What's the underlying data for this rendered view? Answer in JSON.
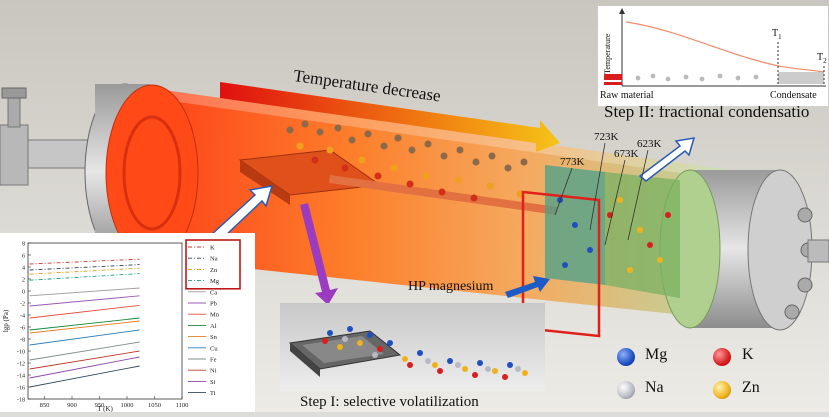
{
  "labels": {
    "temperature_decrease": "Temperature decrease",
    "step2": "Step II: fractional condensatio",
    "step1": "Step I: selective volatilization",
    "hp_magnesium": "HP magnesium",
    "t773": "773K",
    "t723": "723K",
    "t673": "673K",
    "t623": "623K"
  },
  "legend": [
    {
      "symbol": "Mg",
      "color": "#1f4fbf"
    },
    {
      "symbol": "K",
      "color": "#d81e1e"
    },
    {
      "symbol": "Na",
      "color": "#b9b9c4"
    },
    {
      "symbol": "Zn",
      "color": "#f0b21c"
    }
  ],
  "condensation_inset": {
    "ylabel": "Temperature",
    "t1": "T",
    "t1_sub": "1",
    "t2": "T",
    "t2_sub": "2",
    "left_label": "Raw material",
    "right_label": "Condensate"
  },
  "chart_data": {
    "type": "line",
    "xlabel": "T (K)",
    "ylabel": "lgp (Pa)",
    "xlim": [
      820,
      1100
    ],
    "ylim": [
      -18,
      8
    ],
    "x_ticks": [
      850,
      900,
      950,
      1000,
      1050,
      1100
    ],
    "y_ticks": [
      8,
      6,
      4,
      2,
      0,
      -2,
      -4,
      -6,
      -8,
      -10,
      -12,
      -14,
      -16,
      -18
    ],
    "x": [
      823,
      1023
    ],
    "series": [
      {
        "name": "K",
        "color": "#c0392b",
        "dash": "dashdot",
        "values": [
          4.5,
          5.3
        ]
      },
      {
        "name": "Na",
        "color": "#2c3e50",
        "dash": "dashdot",
        "values": [
          3.5,
          4.4
        ]
      },
      {
        "name": "Zn",
        "color": "#d4a017",
        "dash": "dashdot",
        "values": [
          2.8,
          3.8
        ]
      },
      {
        "name": "Mg",
        "color": "#16a085",
        "dash": "dashdot",
        "values": [
          1.8,
          2.9
        ]
      },
      {
        "name": "Ca",
        "color": "#999999",
        "dash": "solid",
        "values": [
          -0.8,
          0.5
        ]
      },
      {
        "name": "Pb",
        "color": "#9b59b6",
        "dash": "solid",
        "values": [
          -2.5,
          -0.8
        ]
      },
      {
        "name": "Mn",
        "color": "#e74c3c",
        "dash": "solid",
        "values": [
          -4.5,
          -2.4
        ]
      },
      {
        "name": "Al",
        "color": "#1a8a3a",
        "dash": "solid",
        "values": [
          -6.5,
          -4.5
        ]
      },
      {
        "name": "Sn",
        "color": "#e67e22",
        "dash": "solid",
        "values": [
          -7.0,
          -5.0
        ]
      },
      {
        "name": "Cu",
        "color": "#2980b9",
        "dash": "solid",
        "values": [
          -9.0,
          -6.5
        ]
      },
      {
        "name": "Fe",
        "color": "#7f8c8d",
        "dash": "solid",
        "values": [
          -11.5,
          -8.5
        ]
      },
      {
        "name": "Ni",
        "color": "#c0392b",
        "dash": "solid",
        "values": [
          -13.0,
          -10.0
        ]
      },
      {
        "name": "Si",
        "color": "#8e44ad",
        "dash": "solid",
        "values": [
          -14.5,
          -11.0
        ]
      },
      {
        "name": "Ti",
        "color": "#34495e",
        "dash": "solid",
        "values": [
          -16.0,
          -12.5
        ]
      }
    ]
  }
}
